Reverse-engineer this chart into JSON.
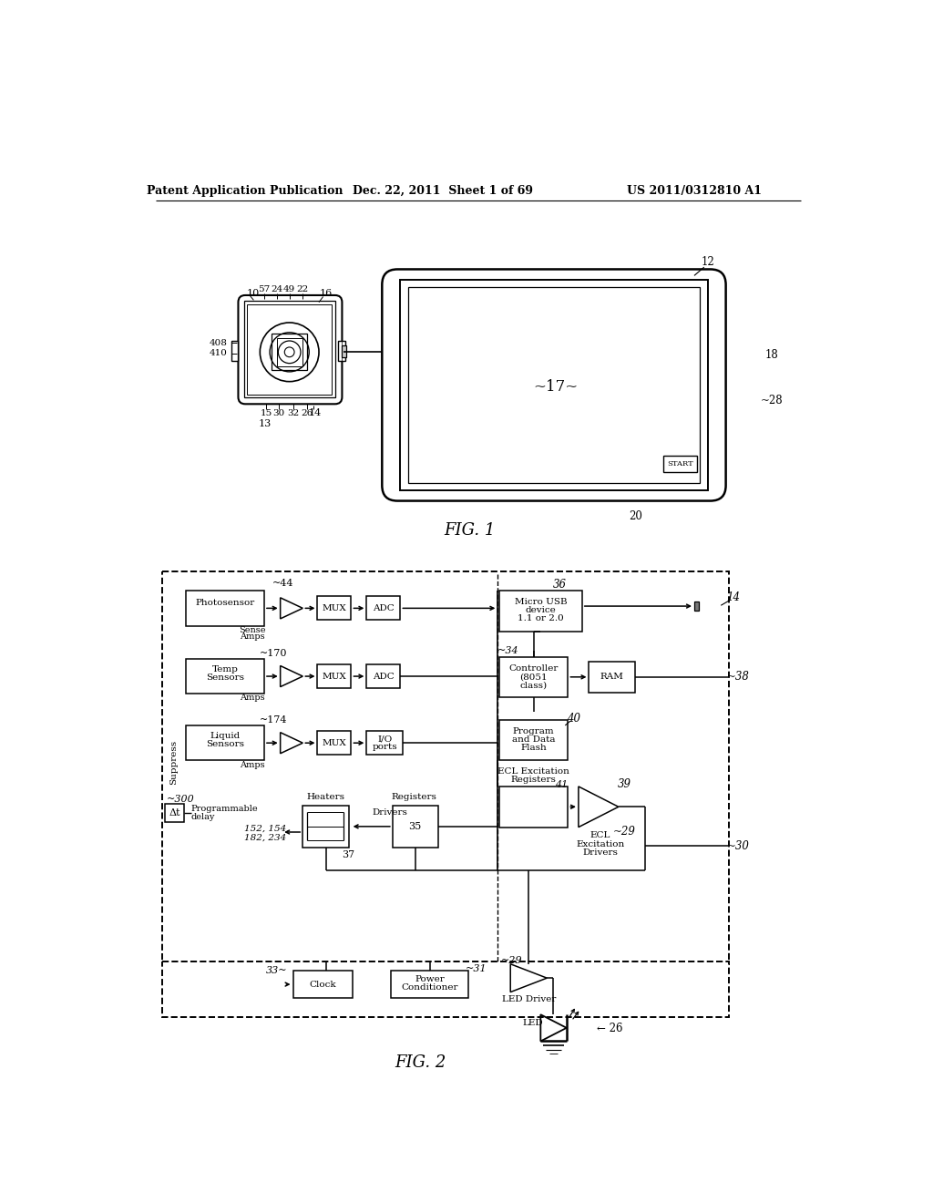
{
  "bg_color": "#ffffff",
  "header_left": "Patent Application Publication",
  "header_mid": "Dec. 22, 2011  Sheet 1 of 69",
  "header_right": "US 2011/0312810 A1",
  "fig1_label": "FIG. 1",
  "fig2_label": "FIG. 2"
}
